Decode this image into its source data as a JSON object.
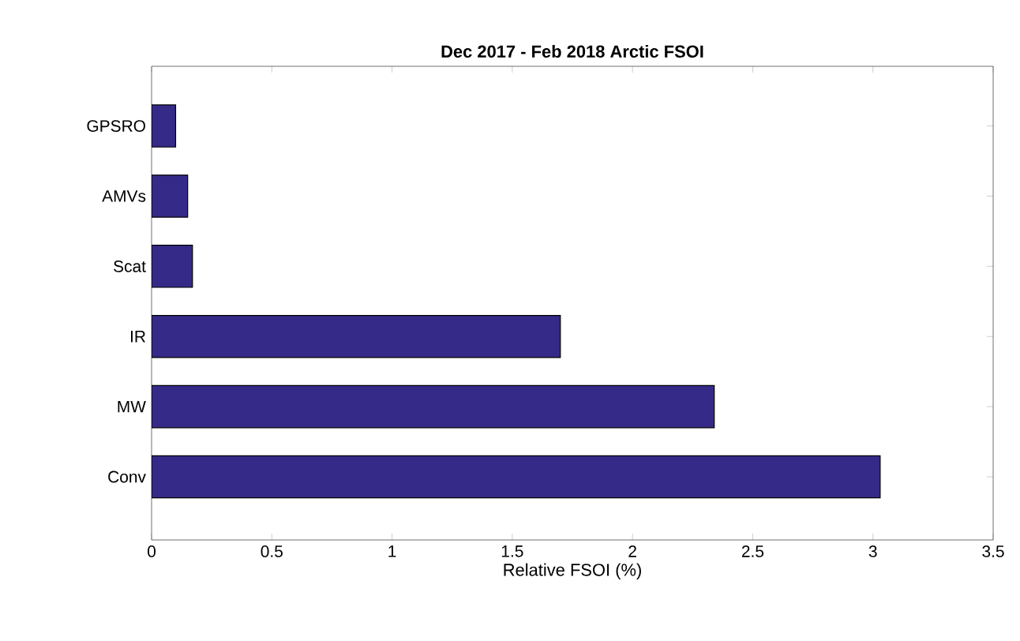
{
  "chart_data": {
    "type": "bar",
    "orientation": "horizontal",
    "title": "Dec 2017 - Feb 2018 Arctic FSOI",
    "xlabel": "Relative FSOI (%)",
    "categories": [
      "GPSRO",
      "AMVs",
      "Scat",
      "IR",
      "MW",
      "Conv"
    ],
    "values": [
      0.1,
      0.15,
      0.17,
      1.7,
      2.34,
      3.03
    ],
    "color": "#352a87",
    "xlim": [
      0,
      3.5
    ],
    "xticks": [
      0,
      0.5,
      1,
      1.5,
      2,
      2.5,
      3,
      3.5
    ]
  }
}
